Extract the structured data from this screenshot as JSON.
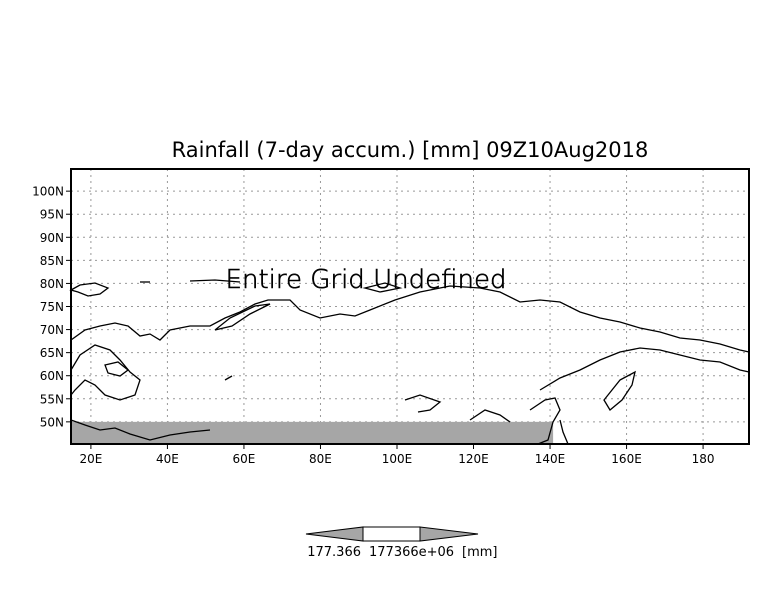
{
  "title": "Rainfall (7-day accum.) [mm] 09Z10Aug2018",
  "overlay_message": "Entire Grid Undefined",
  "map": {
    "lon_range": [
      14.8,
      192
    ],
    "lat_range": [
      45.2,
      104.8
    ],
    "lat_ticks": [
      {
        "value": 100,
        "label": "100N"
      },
      {
        "value": 95,
        "label": "95N"
      },
      {
        "value": 90,
        "label": "90N"
      },
      {
        "value": 85,
        "label": "85N"
      },
      {
        "value": 80,
        "label": "80N"
      },
      {
        "value": 75,
        "label": "75N"
      },
      {
        "value": 70,
        "label": "70N"
      },
      {
        "value": 65,
        "label": "65N"
      },
      {
        "value": 60,
        "label": "60N"
      },
      {
        "value": 55,
        "label": "55N"
      },
      {
        "value": 50,
        "label": "50N"
      }
    ],
    "lon_ticks": [
      {
        "value": 20,
        "label": "20E"
      },
      {
        "value": 40,
        "label": "40E"
      },
      {
        "value": 60,
        "label": "60E"
      },
      {
        "value": 80,
        "label": "80E"
      },
      {
        "value": 100,
        "label": "100E"
      },
      {
        "value": 120,
        "label": "120E"
      },
      {
        "value": 140,
        "label": "140E"
      },
      {
        "value": 160,
        "label": "160E"
      },
      {
        "value": 180,
        "label": "180"
      }
    ],
    "masked_band": {
      "lon": [
        14.8,
        140.8
      ],
      "lat": [
        45.2,
        50
      ],
      "color": "#a6a6a6"
    },
    "grid": true
  },
  "colorbar": {
    "labels": [
      "177.366",
      "177366e+06",
      "[mm]"
    ],
    "color": "#a6a6a6"
  }
}
